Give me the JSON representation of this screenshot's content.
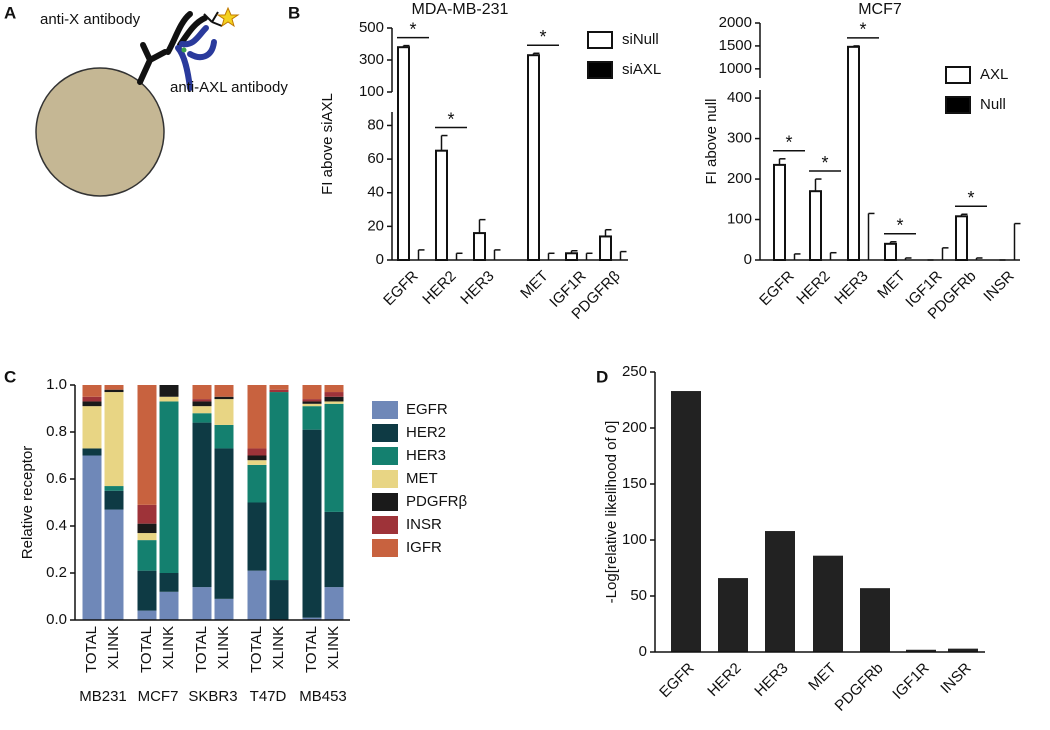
{
  "panel_labels": [
    "A",
    "B",
    "C",
    "D"
  ],
  "diagram": {
    "labels": [
      "anti-X antibody",
      "anti-AXL antibody"
    ]
  },
  "chart_data": [
    {
      "type": "bar",
      "title": "MDA-MB-231",
      "ylabel": "FI above siAXL",
      "categories": [
        "EGFR",
        "HER2",
        "HER3",
        "MET",
        "IGF1R",
        "PDGFRβ"
      ],
      "series": [
        {
          "name": "siNull",
          "color": "#ffffff",
          "values": [
            380,
            65,
            16,
            330,
            4,
            14
          ],
          "errors": [
            10,
            9,
            8,
            12,
            1.5,
            4
          ]
        },
        {
          "name": "siAXL",
          "color": "#000000",
          "values": [
            0,
            0,
            0,
            0,
            0,
            0
          ],
          "errors": [
            6,
            4,
            6,
            4,
            4,
            5
          ]
        }
      ],
      "y_segments": [
        {
          "ylim": [
            0,
            88
          ],
          "yticks": [
            0,
            20,
            40,
            60,
            80
          ]
        },
        {
          "ylim": [
            100,
            500
          ],
          "yticks": [
            100,
            300,
            500
          ]
        }
      ],
      "significance": [
        {
          "category": 0,
          "label": "*"
        },
        {
          "category": 1,
          "label": "*"
        },
        {
          "category": 3,
          "label": "*"
        }
      ],
      "legend": "upper right"
    },
    {
      "type": "bar",
      "title": "MCF7",
      "ylabel": "FI above null",
      "categories": [
        "EGFR",
        "HER2",
        "HER3",
        "MET",
        "IGF1R",
        "PDGFRb",
        "INSR"
      ],
      "series": [
        {
          "name": "AXL",
          "color": "#ffffff",
          "values": [
            235,
            170,
            1480,
            40,
            0,
            108,
            0
          ],
          "errors": [
            15,
            30,
            20,
            5,
            0,
            5,
            0
          ]
        },
        {
          "name": "Null",
          "color": "#000000",
          "values": [
            0,
            0,
            0,
            0,
            0,
            0,
            0
          ],
          "errors": [
            15,
            18,
            115,
            5,
            30,
            5,
            90
          ]
        }
      ],
      "y_segments": [
        {
          "ylim": [
            0,
            420
          ],
          "yticks": [
            0,
            100,
            200,
            300,
            400
          ]
        },
        {
          "ylim": [
            800,
            2000
          ],
          "yticks": [
            1000,
            1500,
            2000
          ]
        }
      ],
      "significance": [
        {
          "category": 0,
          "label": "*"
        },
        {
          "category": 1,
          "label": "*"
        },
        {
          "category": 2,
          "label": "*"
        },
        {
          "category": 3,
          "label": "*"
        },
        {
          "category": 5,
          "label": "*"
        }
      ],
      "legend": "upper right"
    },
    {
      "type": "stacked_bar",
      "ylabel": "Relative receptor",
      "categories": [
        "TOTAL",
        "XLINK",
        "TOTAL",
        "XLINK",
        "TOTAL",
        "XLINK",
        "TOTAL",
        "XLINK",
        "TOTAL",
        "XLINK"
      ],
      "groups": [
        "MB231",
        "MCF7",
        "SKBR3",
        "T47D",
        "MB453"
      ],
      "series": [
        {
          "name": "EGFR",
          "color": "#6f88b8",
          "values": [
            0.7,
            0.47,
            0.04,
            0.12,
            0.14,
            0.09,
            0.21,
            0,
            0.01,
            0.14
          ]
        },
        {
          "name": "HER2",
          "color": "#0e3a44",
          "values": [
            0.03,
            0.08,
            0.17,
            0.08,
            0.7,
            0.64,
            0.29,
            0.17,
            0.8,
            0.32
          ]
        },
        {
          "name": "HER3",
          "color": "#14806f",
          "values": [
            0,
            0.02,
            0.13,
            0.73,
            0.04,
            0.1,
            0.16,
            0.8,
            0.1,
            0.46
          ]
        },
        {
          "name": "MET",
          "color": "#e8d584",
          "values": [
            0.18,
            0.4,
            0.03,
            0.02,
            0.03,
            0.11,
            0.02,
            0,
            0.01,
            0.01
          ]
        },
        {
          "name": "PDGFRβ",
          "color": "#1a1a1a",
          "values": [
            0.02,
            0.01,
            0.04,
            0.05,
            0.02,
            0.01,
            0.02,
            0,
            0.01,
            0.02
          ]
        },
        {
          "name": "INSR",
          "color": "#9e3339",
          "values": [
            0.02,
            0,
            0.08,
            0,
            0.01,
            0,
            0.03,
            0.01,
            0.01,
            0.02
          ]
        },
        {
          "name": "IGFR",
          "color": "#c8623f",
          "values": [
            0.05,
            0.02,
            0.51,
            0,
            0.06,
            0.05,
            0.27,
            0.02,
            0.06,
            0.03
          ]
        }
      ],
      "ylim": [
        0,
        1
      ],
      "yticks": [
        {
          "value": 0,
          "label": "0.0"
        },
        0.2,
        0.4,
        0.6,
        0.8,
        {
          "value": 1,
          "label": "1.0"
        }
      ],
      "legend": "right"
    },
    {
      "type": "bar",
      "ylabel": "-Log[relative likelihood of 0]",
      "categories": [
        "EGFR",
        "HER2",
        "HER3",
        "MET",
        "PDGFRb",
        "IGF1R",
        "INSR"
      ],
      "values": [
        233,
        66,
        108,
        86,
        57,
        2,
        3
      ],
      "color": "#222222",
      "ylim": [
        0,
        250
      ],
      "yticks": [
        0,
        50,
        100,
        150,
        200,
        250
      ]
    }
  ]
}
